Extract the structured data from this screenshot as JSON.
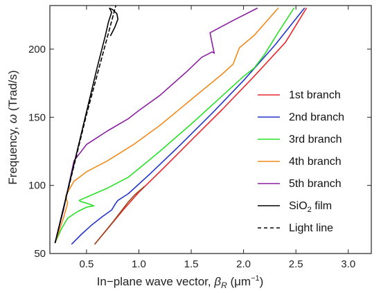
{
  "chart_data": {
    "type": "line",
    "xlabel": {
      "prefix": "In−plane wave vector, ",
      "symbol": "β",
      "symbol_sub": "R",
      "unit_open": " (μm",
      "unit_sup": "−1",
      "unit_close": ")"
    },
    "ylabel": {
      "prefix": "Frequency, ",
      "symbol": "ω",
      "unit": " (Trad/s)"
    },
    "xlim": [
      0.15,
      3.22
    ],
    "ylim": [
      50,
      232
    ],
    "xticks": [
      {
        "value": 0.5,
        "label": "0.5"
      },
      {
        "value": 1.0,
        "label": "1.0"
      },
      {
        "value": 1.5,
        "label": "1.5"
      },
      {
        "value": 2.0,
        "label": "2.0"
      },
      {
        "value": 2.5,
        "label": "2.5"
      },
      {
        "value": 3.0,
        "label": "3.0"
      }
    ],
    "yticks": [
      {
        "value": 50,
        "label": "50"
      },
      {
        "value": 100,
        "label": "100"
      },
      {
        "value": 150,
        "label": "150"
      },
      {
        "value": 200,
        "label": "200"
      }
    ],
    "grid": false,
    "legend_position": "right",
    "series": [
      {
        "key": "branch1",
        "name": "1st branch",
        "color": "#e8262a",
        "dash": "",
        "points": [
          [
            0.58,
            57
          ],
          [
            0.7,
            68
          ],
          [
            0.85,
            82
          ],
          [
            1.0,
            95
          ],
          [
            1.2,
            110
          ],
          [
            1.5,
            133
          ],
          [
            1.8,
            156
          ],
          [
            2.1,
            180
          ],
          [
            2.4,
            205
          ],
          [
            2.6,
            230
          ]
        ]
      },
      {
        "key": "brown",
        "name": "",
        "color": "#9a4a1f",
        "dash": "",
        "points": [
          [
            0.58,
            57
          ],
          [
            0.75,
            73
          ],
          [
            0.9,
            88
          ],
          [
            0.96,
            93
          ],
          [
            1.05,
            99
          ]
        ]
      },
      {
        "key": "branch2",
        "name": "2nd branch",
        "color": "#2233c8",
        "dash": "",
        "points": [
          [
            0.36,
            57
          ],
          [
            0.45,
            64
          ],
          [
            0.55,
            71
          ],
          [
            0.65,
            77
          ],
          [
            0.74,
            82
          ],
          [
            0.78,
            87
          ],
          [
            0.8,
            89
          ],
          [
            0.9,
            94
          ],
          [
            1.1,
            108
          ],
          [
            1.4,
            130
          ],
          [
            1.7,
            153
          ],
          [
            2.0,
            177
          ],
          [
            2.3,
            203
          ],
          [
            2.58,
            230
          ]
        ]
      },
      {
        "key": "branch3",
        "name": "3rd branch",
        "color": "#28e028",
        "dash": "",
        "points": [
          [
            0.2,
            58
          ],
          [
            0.26,
            68
          ],
          [
            0.32,
            76
          ],
          [
            0.42,
            81
          ],
          [
            0.5,
            84
          ],
          [
            0.57,
            85
          ],
          [
            0.5,
            87
          ],
          [
            0.45,
            88
          ],
          [
            0.43,
            89
          ],
          [
            0.52,
            92
          ],
          [
            0.7,
            98
          ],
          [
            0.9,
            106
          ],
          [
            1.2,
            125
          ],
          [
            1.5,
            145
          ],
          [
            1.8,
            166
          ],
          [
            2.0,
            180
          ],
          [
            2.1,
            186
          ],
          [
            2.2,
            196
          ],
          [
            2.32,
            211
          ],
          [
            2.48,
            230
          ]
        ]
      },
      {
        "key": "branch4",
        "name": "4th branch",
        "color": "#f08a1a",
        "dash": "",
        "points": [
          [
            0.2,
            58
          ],
          [
            0.28,
            76
          ],
          [
            0.32,
            87
          ],
          [
            0.3,
            92
          ],
          [
            0.32,
            95
          ],
          [
            0.38,
            103
          ],
          [
            0.5,
            110
          ],
          [
            0.7,
            118
          ],
          [
            0.95,
            130
          ],
          [
            1.2,
            144
          ],
          [
            1.5,
            163
          ],
          [
            1.8,
            182
          ],
          [
            1.9,
            189
          ],
          [
            1.93,
            195
          ],
          [
            1.96,
            201
          ],
          [
            2.1,
            210
          ],
          [
            2.33,
            230
          ]
        ]
      },
      {
        "key": "branch5",
        "name": "5th branch",
        "color": "#8a1fa0",
        "dash": "",
        "points": [
          [
            0.2,
            58
          ],
          [
            0.28,
            82
          ],
          [
            0.33,
            100
          ],
          [
            0.38,
            118
          ],
          [
            0.5,
            130
          ],
          [
            0.7,
            140
          ],
          [
            0.9,
            149
          ],
          [
            1.0,
            155
          ],
          [
            1.2,
            166
          ],
          [
            1.45,
            183
          ],
          [
            1.6,
            194
          ],
          [
            1.7,
            198
          ],
          [
            1.72,
            197
          ],
          [
            1.7,
            204
          ],
          [
            1.68,
            212
          ],
          [
            1.9,
            221
          ],
          [
            2.13,
            230
          ]
        ]
      },
      {
        "key": "sio2",
        "name": "SiO₂ film",
        "legend_text": "SiO",
        "legend_sub": "2",
        "legend_after": " film",
        "color": "#000000",
        "dash": "",
        "points": [
          [
            0.2,
            58
          ],
          [
            0.3,
            90
          ],
          [
            0.4,
            122
          ],
          [
            0.5,
            154
          ],
          [
            0.6,
            186
          ],
          [
            0.68,
            210
          ],
          [
            0.71,
            220
          ],
          [
            0.74,
            227
          ],
          [
            0.72,
            230
          ],
          [
            0.75,
            229
          ],
          [
            0.79,
            226
          ],
          [
            0.8,
            222
          ],
          [
            0.77,
            216
          ],
          [
            0.73,
            210
          ]
        ]
      },
      {
        "key": "light",
        "name": "Light line",
        "color": "#000000",
        "dash": "5,4",
        "points": [
          [
            0.2,
            58
          ],
          [
            0.5,
            152
          ],
          [
            0.78,
            232
          ]
        ]
      }
    ]
  }
}
